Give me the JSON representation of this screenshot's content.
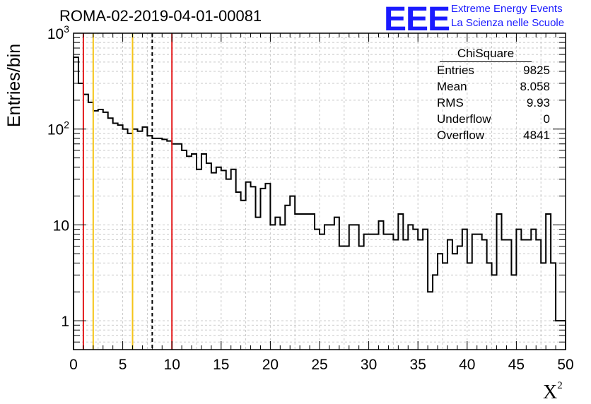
{
  "header": {
    "title": "ROMA-02-2019-04-01-00081",
    "logo_text": "EEE",
    "logo_line1": "Extreme Energy Events",
    "logo_line2": "La Scienza nelle Scuole"
  },
  "stats_box": {
    "title": "ChiSquare",
    "rows": [
      {
        "label": "Entries",
        "value": "9825"
      },
      {
        "label": "Mean",
        "value": "8.058"
      },
      {
        "label": "RMS",
        "value": "9.93"
      },
      {
        "label": "Underflow",
        "value": "0"
      },
      {
        "label": "Overflow",
        "value": "4841"
      }
    ]
  },
  "chart_data": {
    "type": "bar",
    "histogram_style": "step",
    "title": "ROMA-02-2019-04-01-00081",
    "xlabel": "X²",
    "ylabel": "Entries/bin",
    "xlim": [
      0,
      50
    ],
    "ylim": [
      0.5,
      1000
    ],
    "yscale": "log",
    "grid": true,
    "bin_width": 0.5,
    "x": [
      0,
      0.5,
      1,
      1.5,
      2,
      2.5,
      3,
      3.5,
      4,
      4.5,
      5,
      5.5,
      6,
      6.5,
      7,
      7.5,
      8,
      8.5,
      9,
      9.5,
      10,
      10.5,
      11,
      11.5,
      12,
      12.5,
      13,
      13.5,
      14,
      14.5,
      15,
      15.5,
      16,
      16.5,
      17,
      17.5,
      18,
      18.5,
      19,
      19.5,
      20,
      20.5,
      21,
      21.5,
      22,
      22.5,
      23,
      23.5,
      24,
      24.5,
      25,
      25.5,
      26,
      26.5,
      27,
      27.5,
      28,
      28.5,
      29,
      29.5,
      30,
      30.5,
      31,
      31.5,
      32,
      32.5,
      33,
      33.5,
      34,
      34.5,
      35,
      35.5,
      36,
      36.5,
      37,
      37.5,
      38,
      38.5,
      39,
      39.5,
      40,
      40.5,
      41,
      41.5,
      42,
      42.5,
      43,
      43.5,
      44,
      44.5,
      45,
      45.5,
      46,
      46.5,
      47,
      47.5,
      48,
      48.5,
      49,
      49.5
    ],
    "values": [
      560,
      300,
      230,
      190,
      155,
      160,
      150,
      130,
      115,
      110,
      100,
      90,
      100,
      95,
      105,
      85,
      80,
      80,
      78,
      75,
      70,
      70,
      60,
      52,
      55,
      38,
      55,
      44,
      35,
      40,
      37,
      30,
      38,
      22,
      18,
      28,
      25,
      12,
      24,
      27,
      10,
      12,
      10,
      16,
      20,
      13,
      13,
      13,
      13,
      9,
      8,
      10,
      10,
      12,
      6,
      6,
      10,
      10,
      6,
      8,
      8,
      8,
      11,
      8,
      8,
      7,
      13,
      7,
      10,
      9,
      7,
      9,
      2,
      3,
      5,
      4,
      7,
      5,
      6,
      9,
      4,
      8,
      8,
      7,
      4,
      3,
      13,
      7,
      7,
      3,
      9,
      7,
      7,
      9,
      7,
      4,
      13,
      4,
      1,
      1
    ],
    "vertical_lines": [
      {
        "x": 1,
        "color": "#e41a1c",
        "style": "solid"
      },
      {
        "x": 2,
        "color": "#f5c518",
        "style": "solid"
      },
      {
        "x": 6,
        "color": "#f5c518",
        "style": "solid"
      },
      {
        "x": 8,
        "color": "#000000",
        "style": "dashed"
      },
      {
        "x": 10,
        "color": "#e41a1c",
        "style": "solid"
      }
    ],
    "x_ticks": [
      0,
      5,
      10,
      15,
      20,
      25,
      30,
      35,
      40,
      45,
      50
    ],
    "y_ticks": [
      {
        "value": 1,
        "label": "1"
      },
      {
        "value": 10,
        "label": "10"
      },
      {
        "value": 100,
        "label": "10²"
      },
      {
        "value": 1000,
        "label": "10³"
      }
    ]
  }
}
